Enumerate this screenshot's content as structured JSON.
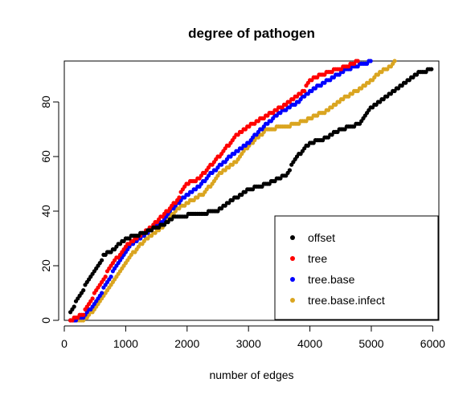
{
  "chart_data": {
    "type": "scatter",
    "title": "degree of pathogen",
    "xlabel": "number of edges",
    "ylabel": "",
    "xlim": [
      0,
      6100
    ],
    "ylim": [
      0,
      95
    ],
    "xticks": [
      0,
      1000,
      2000,
      3000,
      4000,
      5000,
      6000
    ],
    "yticks": [
      0,
      20,
      40,
      60,
      80
    ],
    "grid": false,
    "legend_position": "bottom-right",
    "series": [
      {
        "name": "offset",
        "color": "#000000",
        "anchors": [
          [
            100,
            3
          ],
          [
            200,
            7
          ],
          [
            350,
            13
          ],
          [
            500,
            18
          ],
          [
            650,
            24
          ],
          [
            800,
            26
          ],
          [
            1000,
            30
          ],
          [
            1300,
            32
          ],
          [
            1600,
            35
          ],
          [
            1800,
            38
          ],
          [
            2200,
            39
          ],
          [
            2500,
            40
          ],
          [
            2800,
            45
          ],
          [
            3000,
            48
          ],
          [
            3300,
            50
          ],
          [
            3600,
            53
          ],
          [
            3800,
            60
          ],
          [
            4000,
            65
          ],
          [
            4300,
            67
          ],
          [
            4400,
            69
          ],
          [
            4800,
            72
          ],
          [
            5000,
            78
          ],
          [
            5300,
            83
          ],
          [
            5600,
            88
          ],
          [
            5800,
            91
          ],
          [
            6000,
            92
          ]
        ]
      },
      {
        "name": "tree",
        "color": "#ff0000",
        "anchors": [
          [
            100,
            0
          ],
          [
            300,
            2
          ],
          [
            450,
            8
          ],
          [
            600,
            14
          ],
          [
            800,
            21
          ],
          [
            1000,
            27
          ],
          [
            1300,
            32
          ],
          [
            1500,
            36
          ],
          [
            1800,
            43
          ],
          [
            2000,
            50
          ],
          [
            2200,
            52
          ],
          [
            2400,
            57
          ],
          [
            2600,
            62
          ],
          [
            2800,
            68
          ],
          [
            3000,
            71
          ],
          [
            3300,
            75
          ],
          [
            3600,
            79
          ],
          [
            3900,
            84
          ],
          [
            4000,
            88
          ],
          [
            4300,
            91
          ],
          [
            4600,
            93
          ],
          [
            4800,
            95
          ]
        ]
      },
      {
        "name": "tree.base",
        "color": "#0000ff",
        "anchors": [
          [
            100,
            0
          ],
          [
            300,
            1
          ],
          [
            500,
            6
          ],
          [
            700,
            14
          ],
          [
            900,
            22
          ],
          [
            1100,
            28
          ],
          [
            1300,
            31
          ],
          [
            1600,
            36
          ],
          [
            1800,
            42
          ],
          [
            2000,
            46
          ],
          [
            2200,
            49
          ],
          [
            2400,
            54
          ],
          [
            2600,
            58
          ],
          [
            2800,
            62
          ],
          [
            3000,
            65
          ],
          [
            3200,
            70
          ],
          [
            3500,
            76
          ],
          [
            3800,
            80
          ],
          [
            4000,
            84
          ],
          [
            4300,
            88
          ],
          [
            4600,
            92
          ],
          [
            5000,
            95
          ]
        ]
      },
      {
        "name": "tree.base.infect",
        "color": "#daa520",
        "anchors": [
          [
            100,
            0
          ],
          [
            300,
            0
          ],
          [
            500,
            4
          ],
          [
            700,
            11
          ],
          [
            900,
            18
          ],
          [
            1100,
            24
          ],
          [
            1300,
            29
          ],
          [
            1600,
            34
          ],
          [
            1800,
            40
          ],
          [
            2000,
            43
          ],
          [
            2300,
            47
          ],
          [
            2500,
            53
          ],
          [
            2800,
            58
          ],
          [
            3000,
            64
          ],
          [
            3300,
            70
          ],
          [
            3600,
            71
          ],
          [
            3800,
            72
          ],
          [
            4000,
            74
          ],
          [
            4300,
            77
          ],
          [
            4600,
            82
          ],
          [
            4900,
            86
          ],
          [
            5100,
            90
          ],
          [
            5300,
            93
          ],
          [
            5400,
            95
          ]
        ]
      }
    ]
  }
}
